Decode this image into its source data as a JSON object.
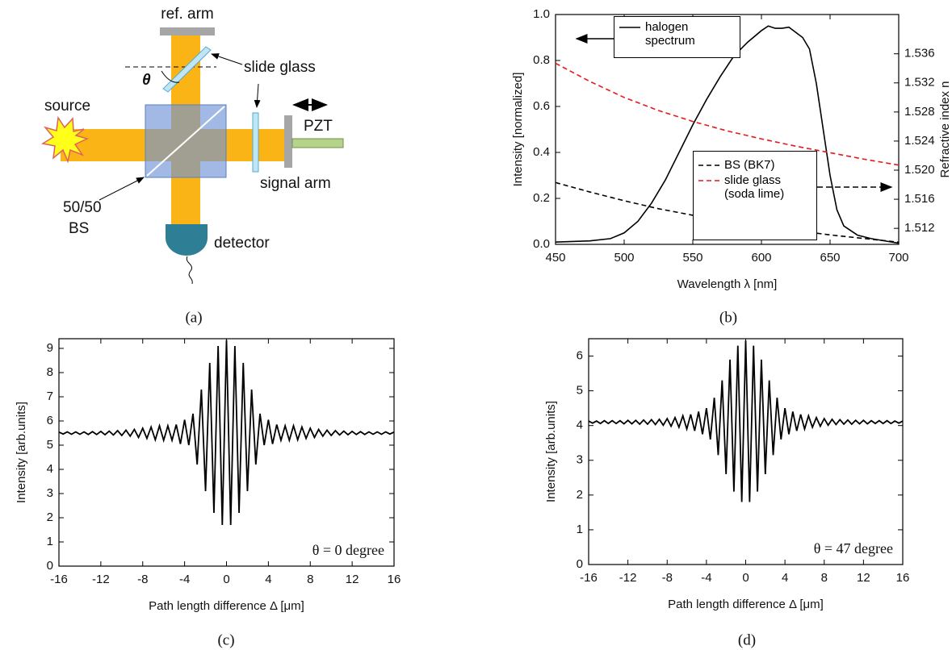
{
  "diagram": {
    "ref_arm": "ref. arm",
    "slide_glass": "slide glass",
    "theta": "θ",
    "source": "source",
    "bs_ratio": "50/50",
    "bs": "BS",
    "pzt": "PZT",
    "signal_arm": "signal arm",
    "detector": "detector"
  },
  "captions": [
    "(a)",
    "(b)",
    "(c)",
    "(d)"
  ],
  "chart_data": [
    {
      "type": "line",
      "x_label": "Wavelength λ [nm]",
      "y_label": "Intensity [normalized]",
      "y2_label": "Refractive index n",
      "xlim": [
        450,
        700
      ],
      "xticks": [
        450,
        500,
        550,
        600,
        650,
        700
      ],
      "ylim": [
        0,
        1
      ],
      "yticks": [
        {
          "value": 0,
          "label": "0.0"
        },
        {
          "value": 0.2,
          "label": "0.2"
        },
        {
          "value": 0.4,
          "label": "0.4"
        },
        {
          "value": 0.6,
          "label": "0.6"
        },
        {
          "value": 0.8,
          "label": "0.8"
        },
        {
          "value": 1,
          "label": "1.0"
        }
      ],
      "y2lim": [
        1.5098,
        1.5414
      ],
      "y2ticks": [
        1.512,
        1.516,
        {
          "value": 1.52,
          "label": "1.520"
        },
        1.524,
        1.528,
        1.532,
        1.536
      ],
      "series": [
        {
          "name": "halogen spectrum",
          "color": "#000000",
          "linestyle": "solid",
          "axis": "y",
          "x": [
            450,
            475,
            490,
            500,
            510,
            520,
            530,
            540,
            550,
            560,
            570,
            580,
            590,
            600,
            605,
            610,
            615,
            620,
            630,
            635,
            640,
            645,
            650,
            655,
            660,
            670,
            680,
            690,
            700
          ],
          "values": [
            0.01,
            0.015,
            0.025,
            0.05,
            0.1,
            0.18,
            0.28,
            0.4,
            0.52,
            0.63,
            0.73,
            0.82,
            0.88,
            0.93,
            0.95,
            0.94,
            0.94,
            0.945,
            0.9,
            0.85,
            0.7,
            0.5,
            0.3,
            0.15,
            0.08,
            0.04,
            0.025,
            0.015,
            0.005
          ]
        },
        {
          "name": "BS (BK7)",
          "color": "#000000",
          "linestyle": "dashed",
          "axis": "y2",
          "x": [
            450,
            475,
            500,
            525,
            550,
            575,
            600,
            625,
            650,
            675,
            700
          ],
          "values": [
            1.5183,
            1.517,
            1.5158,
            1.5147,
            1.5138,
            1.513,
            1.5123,
            1.5117,
            1.5111,
            1.5106,
            1.5101
          ]
        },
        {
          "name": "slide glass (soda lime)",
          "color": "#e8191b",
          "linestyle": "dashed",
          "axis": "y2",
          "x": [
            450,
            475,
            500,
            525,
            550,
            575,
            600,
            625,
            650,
            675,
            700
          ],
          "values": [
            1.5347,
            1.5322,
            1.53,
            1.5282,
            1.5267,
            1.5254,
            1.5243,
            1.5233,
            1.5224,
            1.5215,
            1.5207
          ]
        }
      ]
    },
    {
      "type": "line",
      "x_label": "Path length difference Δ [μm]",
      "y_label": "Intensity [arb.units]",
      "annotation": "θ = 0 degree",
      "xlim": [
        -16,
        16
      ],
      "xticks": [
        -16,
        -12,
        -8,
        -4,
        0,
        4,
        8,
        12,
        16
      ],
      "ylim": [
        0,
        9.4
      ],
      "yticks": [
        0,
        1,
        2,
        3,
        4,
        5,
        6,
        7,
        8,
        9
      ],
      "x": [
        -16,
        -15.6,
        -15.2,
        -14.8,
        -14.4,
        -14,
        -13.6,
        -13.2,
        -12.8,
        -12.4,
        -12,
        -11.6,
        -11.2,
        -10.8,
        -10.4,
        -10,
        -9.6,
        -9.2,
        -8.8,
        -8.4,
        -8,
        -7.6,
        -7.2,
        -6.8,
        -6.4,
        -6,
        -5.6,
        -5.2,
        -4.8,
        -4.4,
        -4,
        -3.6,
        -3.2,
        -2.8,
        -2.4,
        -2,
        -1.6,
        -1.2,
        -0.8,
        -0.4,
        0,
        0.4,
        0.8,
        1.2,
        1.6,
        2,
        2.4,
        2.8,
        3.2,
        3.6,
        4,
        4.4,
        4.8,
        5.2,
        5.6,
        6,
        6.4,
        6.8,
        7.2,
        7.6,
        8,
        8.4,
        8.8,
        9.2,
        9.6,
        10,
        10.4,
        10.8,
        11.2,
        11.6,
        12,
        12.4,
        12.8,
        13.2,
        13.6,
        14,
        14.4,
        14.8,
        15.2,
        15.6,
        16
      ],
      "series": [
        {
          "color": "#000000",
          "linestyle": "solid",
          "values": [
            5.54,
            5.46,
            5.55,
            5.45,
            5.55,
            5.45,
            5.55,
            5.44,
            5.56,
            5.44,
            5.57,
            5.43,
            5.58,
            5.42,
            5.6,
            5.4,
            5.62,
            5.37,
            5.65,
            5.32,
            5.7,
            5.28,
            5.75,
            5.22,
            5.8,
            5.2,
            5.8,
            5.2,
            5.85,
            5.05,
            6.05,
            5,
            6.3,
            4.2,
            7.3,
            3.1,
            8.4,
            2.2,
            9.1,
            1.7,
            9.35,
            1.7,
            9.1,
            2.2,
            8.4,
            3.1,
            7.3,
            4.2,
            6.3,
            5,
            6.05,
            5.05,
            5.85,
            5.2,
            5.8,
            5.2,
            5.8,
            5.22,
            5.75,
            5.28,
            5.7,
            5.32,
            5.65,
            5.37,
            5.62,
            5.4,
            5.6,
            5.42,
            5.58,
            5.43,
            5.57,
            5.44,
            5.56,
            5.44,
            5.55,
            5.45,
            5.55,
            5.45,
            5.55,
            5.46,
            5.54
          ]
        }
      ]
    },
    {
      "type": "line",
      "x_label": "Path length difference Δ [μm]",
      "y_label": "Intensity [arb.units]",
      "annotation": "θ = 47 degree",
      "xlim": [
        -16,
        16
      ],
      "xticks": [
        -16,
        -12,
        -8,
        -4,
        0,
        4,
        8,
        12,
        16
      ],
      "ylim": [
        0,
        6.5
      ],
      "yticks": [
        0,
        1,
        2,
        3,
        4,
        5,
        6
      ],
      "x": [
        -16,
        -15.6,
        -15.2,
        -14.8,
        -14.4,
        -14,
        -13.6,
        -13.2,
        -12.8,
        -12.4,
        -12,
        -11.6,
        -11.2,
        -10.8,
        -10.4,
        -10,
        -9.6,
        -9.2,
        -8.8,
        -8.4,
        -8,
        -7.6,
        -7.2,
        -6.8,
        -6.4,
        -6,
        -5.6,
        -5.2,
        -4.8,
        -4.4,
        -4,
        -3.6,
        -3.2,
        -2.8,
        -2.4,
        -2,
        -1.6,
        -1.2,
        -0.8,
        -0.4,
        0,
        0.4,
        0.8,
        1.2,
        1.6,
        2,
        2.4,
        2.8,
        3.2,
        3.6,
        4,
        4.4,
        4.8,
        5.2,
        5.6,
        6,
        6.4,
        6.8,
        7.2,
        7.6,
        8,
        8.4,
        8.8,
        9.2,
        9.6,
        10,
        10.4,
        10.8,
        11.2,
        11.6,
        12,
        12.4,
        12.8,
        13.2,
        13.6,
        14,
        14.4,
        14.8,
        15.2,
        15.6,
        16
      ],
      "series": [
        {
          "color": "#000000",
          "linestyle": "solid",
          "values": [
            4.13,
            4.07,
            4.13,
            4.06,
            4.14,
            4.06,
            4.14,
            4.06,
            4.14,
            4.05,
            4.15,
            4.05,
            4.15,
            4.04,
            4.16,
            4.04,
            4.17,
            4.03,
            4.18,
            4.01,
            4.2,
            3.98,
            4.23,
            3.95,
            4.28,
            3.9,
            4.32,
            3.85,
            4.4,
            3.75,
            4.5,
            3.6,
            4.8,
            3.15,
            5.3,
            2.6,
            5.9,
            2.1,
            6.3,
            1.8,
            6.45,
            1.8,
            6.3,
            2.1,
            5.9,
            2.6,
            5.3,
            3.15,
            4.8,
            3.6,
            4.5,
            3.75,
            4.4,
            3.85,
            4.32,
            3.9,
            4.28,
            3.95,
            4.23,
            3.98,
            4.2,
            4.01,
            4.18,
            4.03,
            4.17,
            4.04,
            4.16,
            4.04,
            4.15,
            4.05,
            4.15,
            4.05,
            4.14,
            4.06,
            4.14,
            4.06,
            4.14,
            4.06,
            4.13,
            4.07,
            4.13
          ]
        }
      ]
    }
  ]
}
